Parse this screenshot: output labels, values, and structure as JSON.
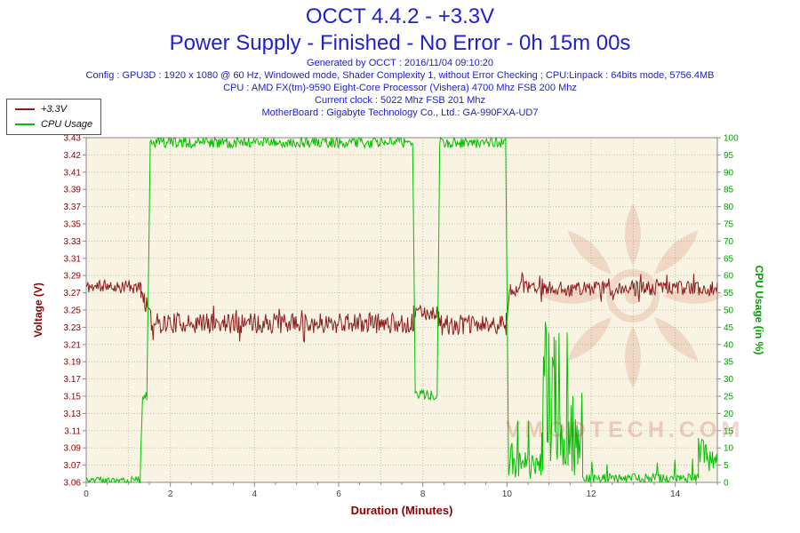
{
  "header": {
    "title_line1": "OCCT 4.4.2 - +3.3V",
    "title_line2": "Power Supply - Finished - No Error - 0h 15m 00s",
    "generated": "Generated by OCCT : 2016/11/04 09:10:20",
    "config": "Config : GPU3D : 1920 x 1080 @ 60 Hz, Windowed mode, Shader Complexity 1, without Error Checking ; CPU:Linpack : 64bits mode, 5756.4MB",
    "cpu": "CPU : AMD FX(tm)-9590 Eight-Core Processor (Vishera) 4700 Mhz FSB 200 Mhz",
    "clock": "Current clock : 5022 Mhz FSB 201 Mhz",
    "motherboard": "MotherBoard : Gigabyte Technology Co., Ltd.: GA-990FXA-UD7"
  },
  "ui_colors": {
    "header_blue": "#2121cb",
    "voltage_maroon": "#8b0000",
    "cpu_green": "#00a000"
  },
  "legend": {
    "items": [
      {
        "label": "+3.3V",
        "color": "#8b1e1e"
      },
      {
        "label": "CPU Usage",
        "color": "#00c000"
      }
    ]
  },
  "watermark": {
    "text": "VMODTECH.COM",
    "color": "#c23b2e"
  },
  "chart_data": {
    "type": "line",
    "title": "OCCT 4.4.2 - +3.3V",
    "subtitle": "Power Supply - Finished - No Error - 0h 15m 00s",
    "seed": 11,
    "sample_step": 0.02,
    "grid": true,
    "legend_position": "top-left",
    "colors": {
      "plot_bg": "#f8f3e2",
      "grid": "#c6bfa4",
      "axis": "#8a8a8a",
      "x_tick_text": "#404040",
      "left_tick_text": "#8b0000",
      "right_tick_text": "#00a000"
    },
    "x_axis": {
      "label": "Duration (Minutes)",
      "min": 0,
      "max": 15,
      "tick_step": 2,
      "tick_labels": [
        "0",
        "2",
        "4",
        "6",
        "8",
        "10",
        "12",
        "14"
      ]
    },
    "y_left": {
      "label": "Voltage (V)",
      "min": 3.06,
      "max": 3.43,
      "tick_labels": [
        "3.43",
        "3.42",
        "3.41",
        "3.39",
        "3.37",
        "3.35",
        "3.33",
        "3.31",
        "3.29",
        "3.27",
        "3.25",
        "3.23",
        "3.21",
        "3.19",
        "3.17",
        "3.15",
        "3.13",
        "3.11",
        "3.09",
        "3.07",
        "3.06"
      ]
    },
    "y_right": {
      "label": "CPU Usage (in %)",
      "min": 0,
      "max": 100,
      "tick_step": 5
    },
    "series": [
      {
        "id": "voltage-3v3",
        "name": "+3.3V",
        "axis": "left",
        "color": "#8b1e1e",
        "summary": "~3.27V idle (0-1.3min), drops to noisy 3.21-3.25V band under load (1.3-10min) with brief rise to ~3.24V during 7.8-8.4min lull, returns to ~3.26-3.28V after 10min",
        "segments": [
          {
            "from": 0.0,
            "to": 1.3,
            "base": 3.27,
            "noise": 0.007,
            "spike_prob": 0.08,
            "spike_min": 3.255,
            "spike_max": 3.282
          },
          {
            "from": 1.3,
            "to": 1.55,
            "from_val": 3.268,
            "to_val": 3.232,
            "noise": 0.01
          },
          {
            "from": 1.55,
            "to": 7.78,
            "base": 3.231,
            "noise": 0.011,
            "spike_prob": 0.07,
            "spike_min": 3.21,
            "spike_max": 3.252
          },
          {
            "from": 7.78,
            "to": 8.38,
            "base": 3.242,
            "noise": 0.008
          },
          {
            "from": 8.38,
            "to": 9.98,
            "base": 3.229,
            "noise": 0.011,
            "spike_prob": 0.06,
            "spike_min": 3.212,
            "spike_max": 3.25
          },
          {
            "from": 9.98,
            "to": 10.08,
            "from_val": 3.235,
            "to_val": 3.268,
            "noise": 0.008
          },
          {
            "from": 10.08,
            "to": 15.0,
            "base": 3.268,
            "noise": 0.008,
            "spike_prob": 0.08,
            "spike_min": 3.252,
            "spike_max": 3.286
          }
        ]
      },
      {
        "id": "cpu-usage",
        "name": "CPU Usage",
        "axis": "right",
        "color": "#00c000",
        "summary": "0% idle, ~98-100% load 1.5-7.8min and 8.4-10min, ~25% step 7.8-8.4min, low with spikes to ~60% around 11min, near 0% after with small bumps to ~13% near 14.7min",
        "segments": [
          {
            "from": 0.0,
            "to": 1.28,
            "base": 0.7,
            "noise": 1.0,
            "clamp_min": 0
          },
          {
            "from": 1.28,
            "to": 1.34,
            "from_val": 1,
            "to_val": 25,
            "noise": 1.5
          },
          {
            "from": 1.34,
            "to": 1.44,
            "base": 25,
            "noise": 1.5
          },
          {
            "from": 1.44,
            "to": 1.52,
            "from_val": 25,
            "to_val": 97,
            "noise": 1.5
          },
          {
            "from": 1.52,
            "to": 7.76,
            "base": 98.6,
            "noise": 1.6,
            "clamp_max": 100
          },
          {
            "from": 7.76,
            "to": 7.82,
            "from_val": 97,
            "to_val": 26,
            "noise": 1.5
          },
          {
            "from": 7.82,
            "to": 8.34,
            "base": 25.5,
            "noise": 1.5
          },
          {
            "from": 8.34,
            "to": 8.4,
            "from_val": 26,
            "to_val": 97,
            "noise": 1.5
          },
          {
            "from": 8.4,
            "to": 9.97,
            "base": 98.6,
            "noise": 1.6,
            "clamp_max": 100
          },
          {
            "from": 9.97,
            "to": 10.04,
            "from_val": 97,
            "to_val": 4,
            "noise": 2
          },
          {
            "from": 10.04,
            "to": 10.85,
            "base": 5,
            "noise": 4,
            "clamp_min": 0,
            "spike_prob": 0.12,
            "spike_min": 8,
            "spike_max": 18
          },
          {
            "from": 10.85,
            "to": 11.12,
            "base": 12,
            "noise": 8,
            "clamp_min": 0,
            "spike_prob": 0.4,
            "spike_min": 20,
            "spike_max": 62
          },
          {
            "from": 11.12,
            "to": 11.45,
            "base": 10,
            "noise": 7,
            "clamp_min": 0,
            "spike_prob": 0.35,
            "spike_min": 15,
            "spike_max": 45
          },
          {
            "from": 11.45,
            "to": 11.8,
            "base": 6,
            "noise": 5,
            "clamp_min": 0,
            "spike_prob": 0.25,
            "spike_min": 8,
            "spike_max": 28
          },
          {
            "from": 11.8,
            "to": 14.55,
            "base": 1.2,
            "noise": 1.4,
            "clamp_min": 0,
            "spike_prob": 0.05,
            "spike_min": 3,
            "spike_max": 7
          },
          {
            "from": 14.55,
            "to": 14.75,
            "base": 9,
            "noise": 4,
            "clamp_min": 0,
            "spike_prob": 0.3,
            "spike_min": 6,
            "spike_max": 13
          },
          {
            "from": 14.75,
            "to": 15.0,
            "base": 6,
            "noise": 4,
            "clamp_min": 0
          }
        ]
      }
    ]
  }
}
